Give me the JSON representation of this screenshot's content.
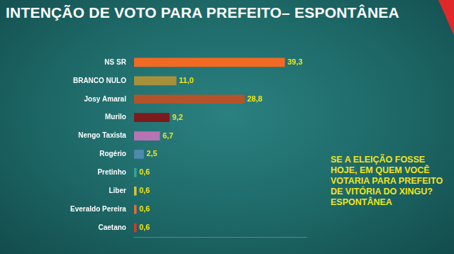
{
  "chart_data": {
    "type": "bar",
    "title": "INTENÇÃO DE VOTO PARA PREFEITO– ESPONTÂNEA",
    "annotation": "SE A ELEIÇÃO FOSSE HOJE, EM QUEM VOCÊ VOTARIA PARA PREFEITO DE VITÓRIA DO XINGU? ESPONTÂNEA",
    "categories": [
      "NS SR",
      "BRANCO NULO",
      "Josy Amaral",
      "Murilo",
      "Nengo Taxista",
      "Rogério",
      "Pretinho",
      "Liber",
      "Everaldo Pereira",
      "Caetano"
    ],
    "values": [
      39.3,
      11.0,
      28.8,
      9.2,
      6.7,
      2.5,
      0.6,
      0.6,
      0.6,
      0.6
    ],
    "value_labels": [
      "39,3",
      "11,0",
      "28,8",
      "9,2",
      "6,7",
      "2,5",
      "0,6",
      "0,6",
      "0,6",
      "0,6"
    ],
    "colors": [
      "#f26a22",
      "#a8903a",
      "#b4532a",
      "#7c1b1d",
      "#b873b4",
      "#4f8aac",
      "#3ba38f",
      "#d9c03a",
      "#e2702e",
      "#d23a2e"
    ],
    "xlim": [
      0,
      45
    ],
    "orientation": "horizontal",
    "data_labels": true,
    "tick_labels": "y",
    "grid": false
  }
}
